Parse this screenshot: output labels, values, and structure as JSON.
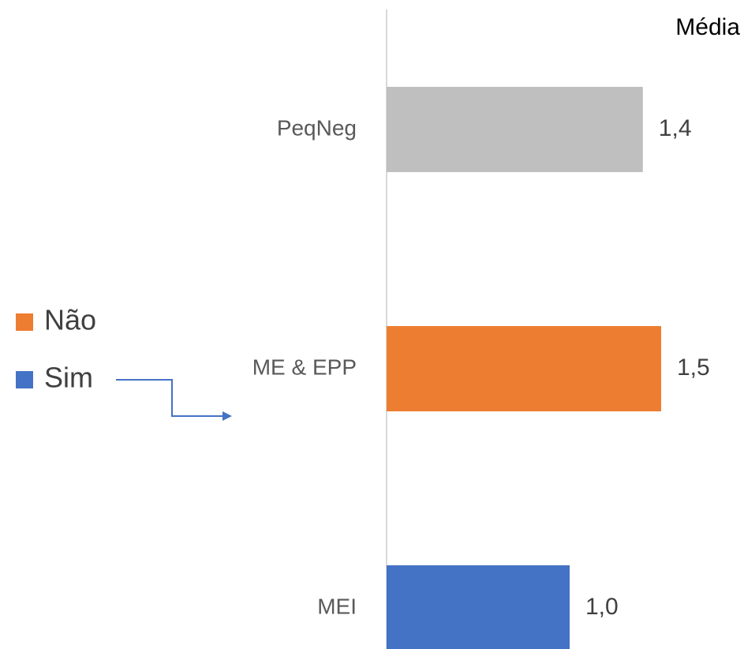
{
  "chart_data": {
    "type": "barh",
    "title": "Média",
    "categories": [
      "PeqNeg",
      "ME & EPP",
      "MEI"
    ],
    "values": [
      1.4,
      1.5,
      1.0
    ],
    "value_labels": [
      "1,4",
      "1,5",
      "1,0"
    ],
    "colors": [
      "#bfbfbf",
      "#ed7d31",
      "#4472c4"
    ],
    "xlim": [
      0,
      1.9
    ],
    "legend": [
      {
        "name": "Não",
        "color": "#ed7d31"
      },
      {
        "name": "Sim",
        "color": "#4472c4"
      }
    ]
  }
}
